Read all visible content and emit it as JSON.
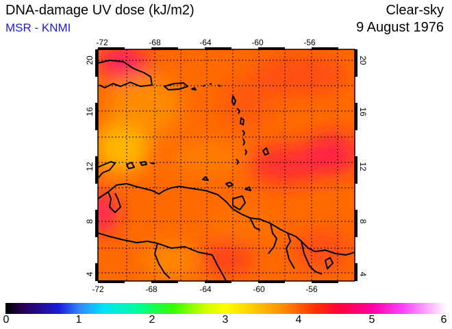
{
  "header": {
    "title": "DNA-damage UV dose (kJ/m2)",
    "credit": "MSR - KNMI",
    "sky_condition": "Clear-sky",
    "date": "9 August 1976"
  },
  "map": {
    "top_lon_labels": [
      "-72",
      "-68",
      "-64",
      "-60",
      "-56"
    ],
    "bottom_lon_labels": [
      "-72",
      "-68",
      "-64",
      "-60",
      "-56"
    ],
    "left_lat_labels": [
      "20",
      "16",
      "12",
      "8",
      "4"
    ],
    "right_lat_labels": [
      "20",
      "16",
      "12",
      "8",
      "4"
    ],
    "colors": {
      "field_base": "#ff6a00",
      "field_high": "#ff1a3c",
      "field_low": "#ffb400",
      "coast": "#000000",
      "grid": "#000000"
    }
  },
  "colorbar": {
    "tick_labels": [
      "0",
      "1",
      "2",
      "3",
      "4",
      "5",
      "6"
    ]
  }
}
